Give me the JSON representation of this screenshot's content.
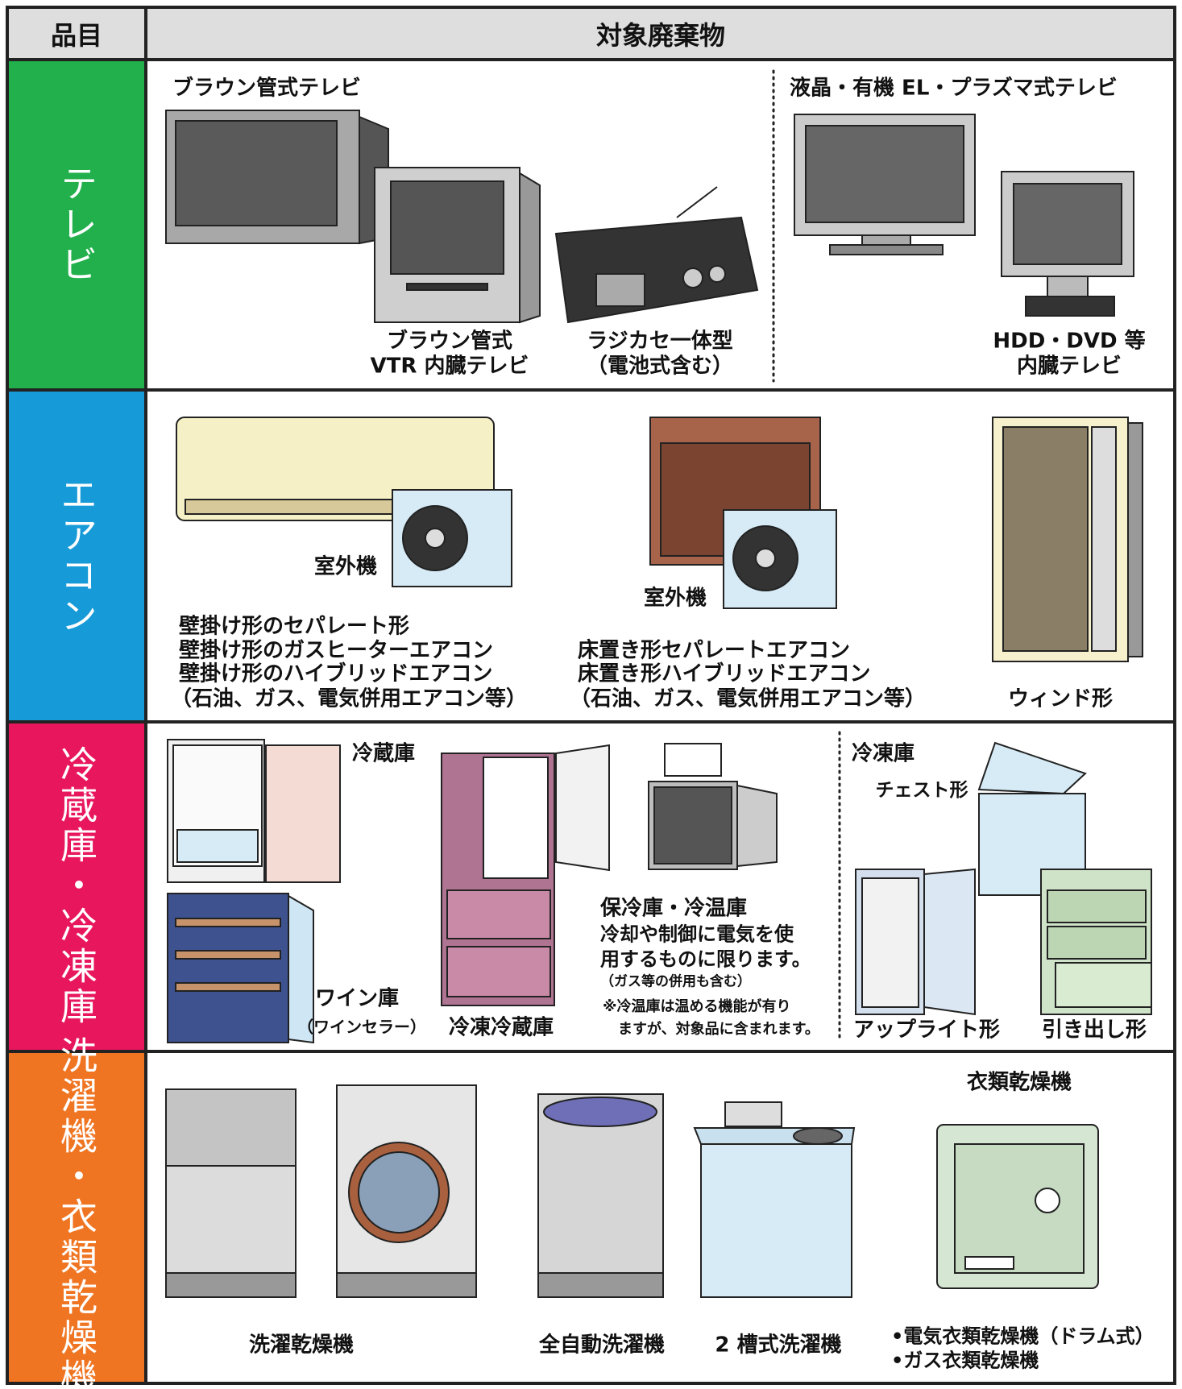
{
  "header": {
    "item": "品目",
    "target": "対象廃棄物"
  },
  "rows": [
    {
      "category": "テレビ",
      "texts": [
        "ブラウン管式テレビ",
        "液晶・有機 EL・プラズマ式テレビ",
        "ブラウン管式",
        "VTR 内臓テレビ",
        "ラジカセ一体型",
        "（電池式含む）",
        "HDD・DVD 等",
        "内臓テレビ"
      ]
    },
    {
      "category": "エアコン",
      "texts": [
        "室外機",
        "壁掛け形のセパレート形",
        "壁掛け形のガスヒーターエアコン",
        "壁掛け形のハイブリッドエアコン",
        "（石油、ガス、電気併用エアコン等）",
        "室外機",
        "床置き形セパレートエアコン",
        "床置き形ハイブリッドエアコン",
        "（石油、ガス、電気併用エアコン等）",
        "ウィンド形"
      ]
    },
    {
      "category": "冷蔵庫・冷凍庫",
      "texts": [
        "冷蔵庫",
        "ワイン庫",
        "（ワインセラー）",
        "冷凍冷蔵庫",
        "保冷庫・冷温庫",
        "冷却や制御に電気を使",
        "用するものに限ります。",
        "（ガス等の併用も含む）",
        "※冷温庫は温める機能が有り",
        "ますが、対象品に含まれます。",
        "冷凍庫",
        "チェスト形",
        "アップライト形",
        "引き出し形"
      ]
    },
    {
      "category": "洗濯機・衣類乾燥機",
      "texts": [
        "衣類乾燥機",
        "洗濯乾燥機",
        "全自動洗濯機",
        "2 槽式洗濯機",
        "•電気衣類乾燥機（ドラム式）",
        "•ガス衣類乾燥機"
      ]
    }
  ]
}
